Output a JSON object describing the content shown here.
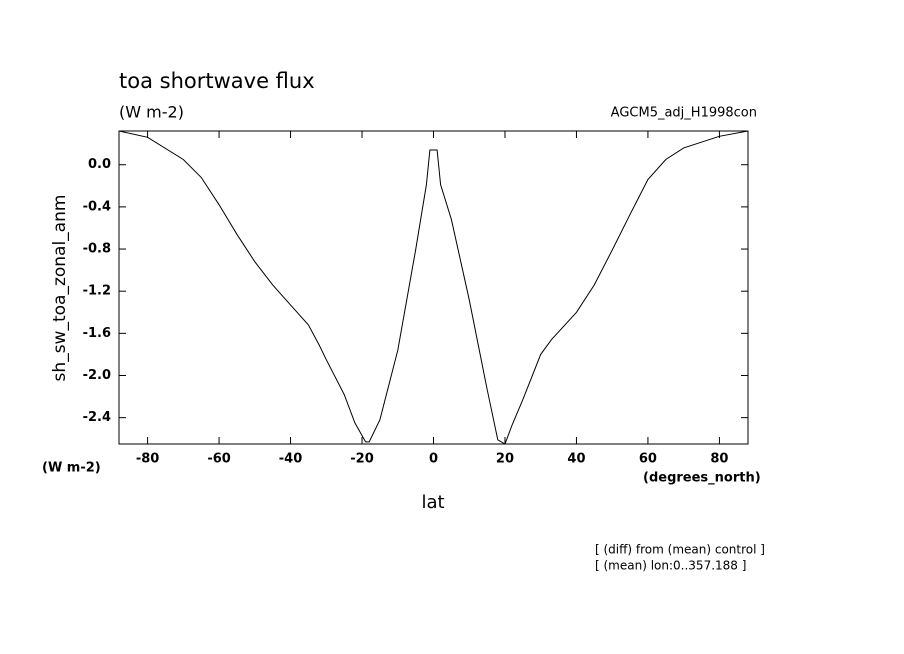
{
  "chart_data": {
    "type": "line",
    "title": "toa shortwave flux",
    "subtitle": "(W m-2)",
    "dataset_label": "AGCM5_adj_H1998con",
    "y_label": "sh_sw_toa_zonal_anm",
    "y_units": "(W m-2)",
    "x_label": "lat",
    "x_units": "(degrees_north)",
    "annotations": [
      "[ (diff) from (mean) control ]",
      "[ (mean) lon:0..357.188 ]"
    ],
    "x": [
      -88,
      -80,
      -70,
      -65,
      -60,
      -55,
      -50,
      -45,
      -40,
      -35,
      -32,
      -30,
      -25,
      -22,
      -19,
      -18,
      -15,
      -10,
      -5,
      -2,
      -1,
      0,
      1,
      2,
      5,
      10,
      15,
      18,
      20,
      22,
      25,
      30,
      33,
      40,
      45,
      50,
      55,
      60,
      65,
      70,
      80,
      88
    ],
    "series": [
      {
        "name": "sh_sw_toa_zonal_anm",
        "color": "#000000",
        "values": [
          0.32,
          0.26,
          0.05,
          -0.12,
          -0.38,
          -0.66,
          -0.92,
          -1.14,
          -1.33,
          -1.52,
          -1.71,
          -1.85,
          -2.18,
          -2.45,
          -2.63,
          -2.63,
          -2.42,
          -1.76,
          -0.81,
          -0.19,
          0.14,
          0.14,
          0.14,
          -0.19,
          -0.52,
          -1.28,
          -2.13,
          -2.61,
          -2.65,
          -2.47,
          -2.23,
          -1.8,
          -1.66,
          -1.4,
          -1.14,
          -0.81,
          -0.47,
          -0.14,
          0.05,
          0.16,
          0.27,
          0.32
        ]
      }
    ],
    "xlim": [
      -88,
      88
    ],
    "ylim": [
      -2.65,
      0.32
    ],
    "xticks": [
      -80,
      -60,
      -40,
      -20,
      0,
      20,
      40,
      60,
      80
    ],
    "yticks": [
      {
        "value": 0,
        "label": "0.0"
      },
      -0.4,
      -0.8,
      -1.2,
      -1.6,
      {
        "value": -2,
        "label": "-2.0"
      },
      -2.4
    ],
    "grid": false
  }
}
